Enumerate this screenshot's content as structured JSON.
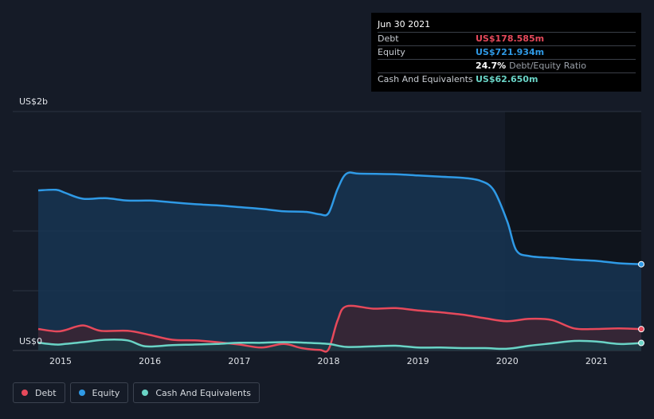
{
  "chart_data": {
    "type": "area",
    "title": "",
    "xlabel": "",
    "ylabel": "",
    "y_label_top": "US$2b",
    "y_label_bottom": "US$0",
    "ylim": [
      0,
      2000
    ],
    "xlim": [
      2014.75,
      2021.5
    ],
    "x_ticks": [
      {
        "value": 2015,
        "label": "2015"
      },
      {
        "value": 2016,
        "label": "2016"
      },
      {
        "value": 2017,
        "label": "2017"
      },
      {
        "value": 2018,
        "label": "2018"
      },
      {
        "value": 2019,
        "label": "2019"
      },
      {
        "value": 2020,
        "label": "2020"
      },
      {
        "value": 2021,
        "label": "2021"
      }
    ],
    "grid_values": [
      500,
      1000,
      1500
    ],
    "series": [
      {
        "name": "Equity",
        "color": "#2f9ae6",
        "fill": "#163452",
        "values": [
          [
            2014.75,
            1340
          ],
          [
            2014.95,
            1345
          ],
          [
            2015.05,
            1320
          ],
          [
            2015.25,
            1270
          ],
          [
            2015.5,
            1275
          ],
          [
            2015.75,
            1255
          ],
          [
            2016.0,
            1255
          ],
          [
            2016.25,
            1240
          ],
          [
            2016.5,
            1225
          ],
          [
            2016.75,
            1215
          ],
          [
            2017.0,
            1200
          ],
          [
            2017.25,
            1185
          ],
          [
            2017.5,
            1165
          ],
          [
            2017.75,
            1160
          ],
          [
            2017.9,
            1140
          ],
          [
            2018.0,
            1150
          ],
          [
            2018.1,
            1350
          ],
          [
            2018.2,
            1480
          ],
          [
            2018.35,
            1480
          ],
          [
            2018.75,
            1475
          ],
          [
            2019.0,
            1465
          ],
          [
            2019.25,
            1455
          ],
          [
            2019.5,
            1445
          ],
          [
            2019.7,
            1420
          ],
          [
            2019.85,
            1340
          ],
          [
            2020.0,
            1080
          ],
          [
            2020.1,
            840
          ],
          [
            2020.25,
            790
          ],
          [
            2020.5,
            775
          ],
          [
            2020.75,
            760
          ],
          [
            2021.0,
            750
          ],
          [
            2021.25,
            730
          ],
          [
            2021.5,
            722
          ]
        ]
      },
      {
        "name": "Debt",
        "color": "#e6495b",
        "fill": "#3b2533",
        "values": [
          [
            2014.75,
            180
          ],
          [
            2014.95,
            160
          ],
          [
            2015.05,
            170
          ],
          [
            2015.25,
            210
          ],
          [
            2015.45,
            165
          ],
          [
            2015.75,
            165
          ],
          [
            2016.0,
            130
          ],
          [
            2016.25,
            90
          ],
          [
            2016.5,
            85
          ],
          [
            2016.75,
            70
          ],
          [
            2017.0,
            50
          ],
          [
            2017.25,
            25
          ],
          [
            2017.5,
            55
          ],
          [
            2017.7,
            20
          ],
          [
            2017.9,
            5
          ],
          [
            2018.0,
            10
          ],
          [
            2018.1,
            250
          ],
          [
            2018.2,
            370
          ],
          [
            2018.5,
            350
          ],
          [
            2018.75,
            355
          ],
          [
            2019.0,
            335
          ],
          [
            2019.25,
            320
          ],
          [
            2019.5,
            300
          ],
          [
            2019.75,
            270
          ],
          [
            2020.0,
            245
          ],
          [
            2020.25,
            265
          ],
          [
            2020.5,
            255
          ],
          [
            2020.75,
            185
          ],
          [
            2021.0,
            180
          ],
          [
            2021.25,
            185
          ],
          [
            2021.5,
            179
          ]
        ]
      },
      {
        "name": "Cash And Equivalents",
        "color": "#6ad4c6",
        "fill": "#1a3c45",
        "values": [
          [
            2014.75,
            65
          ],
          [
            2014.95,
            50
          ],
          [
            2015.05,
            55
          ],
          [
            2015.25,
            70
          ],
          [
            2015.5,
            90
          ],
          [
            2015.75,
            85
          ],
          [
            2015.95,
            35
          ],
          [
            2016.25,
            45
          ],
          [
            2016.5,
            50
          ],
          [
            2016.75,
            55
          ],
          [
            2017.0,
            65
          ],
          [
            2017.25,
            65
          ],
          [
            2017.5,
            70
          ],
          [
            2017.75,
            65
          ],
          [
            2018.0,
            55
          ],
          [
            2018.2,
            30
          ],
          [
            2018.5,
            35
          ],
          [
            2018.75,
            40
          ],
          [
            2019.0,
            25
          ],
          [
            2019.25,
            25
          ],
          [
            2019.5,
            20
          ],
          [
            2019.75,
            20
          ],
          [
            2020.0,
            15
          ],
          [
            2020.25,
            40
          ],
          [
            2020.5,
            60
          ],
          [
            2020.75,
            80
          ],
          [
            2021.0,
            75
          ],
          [
            2021.25,
            55
          ],
          [
            2021.5,
            63
          ]
        ]
      }
    ],
    "tooltip": {
      "date": "Jun 30 2021",
      "rows": [
        {
          "label": "Debt",
          "value": "US$178.585m",
          "color": "#e6495b"
        },
        {
          "label": "Equity",
          "value": "US$721.934m",
          "color": "#2f9ae6"
        },
        {
          "label": "",
          "value": "24.7%",
          "value_suffix": "Debt/Equity Ratio",
          "color": "#ffffff"
        },
        {
          "label": "Cash And Equivalents",
          "value": "US$62.650m",
          "color": "#6ad4c6"
        }
      ]
    },
    "legend": [
      {
        "label": "Debt",
        "color": "#e6495b"
      },
      {
        "label": "Equity",
        "color": "#2f9ae6"
      },
      {
        "label": "Cash And Equivalents",
        "color": "#6ad4c6"
      }
    ]
  }
}
